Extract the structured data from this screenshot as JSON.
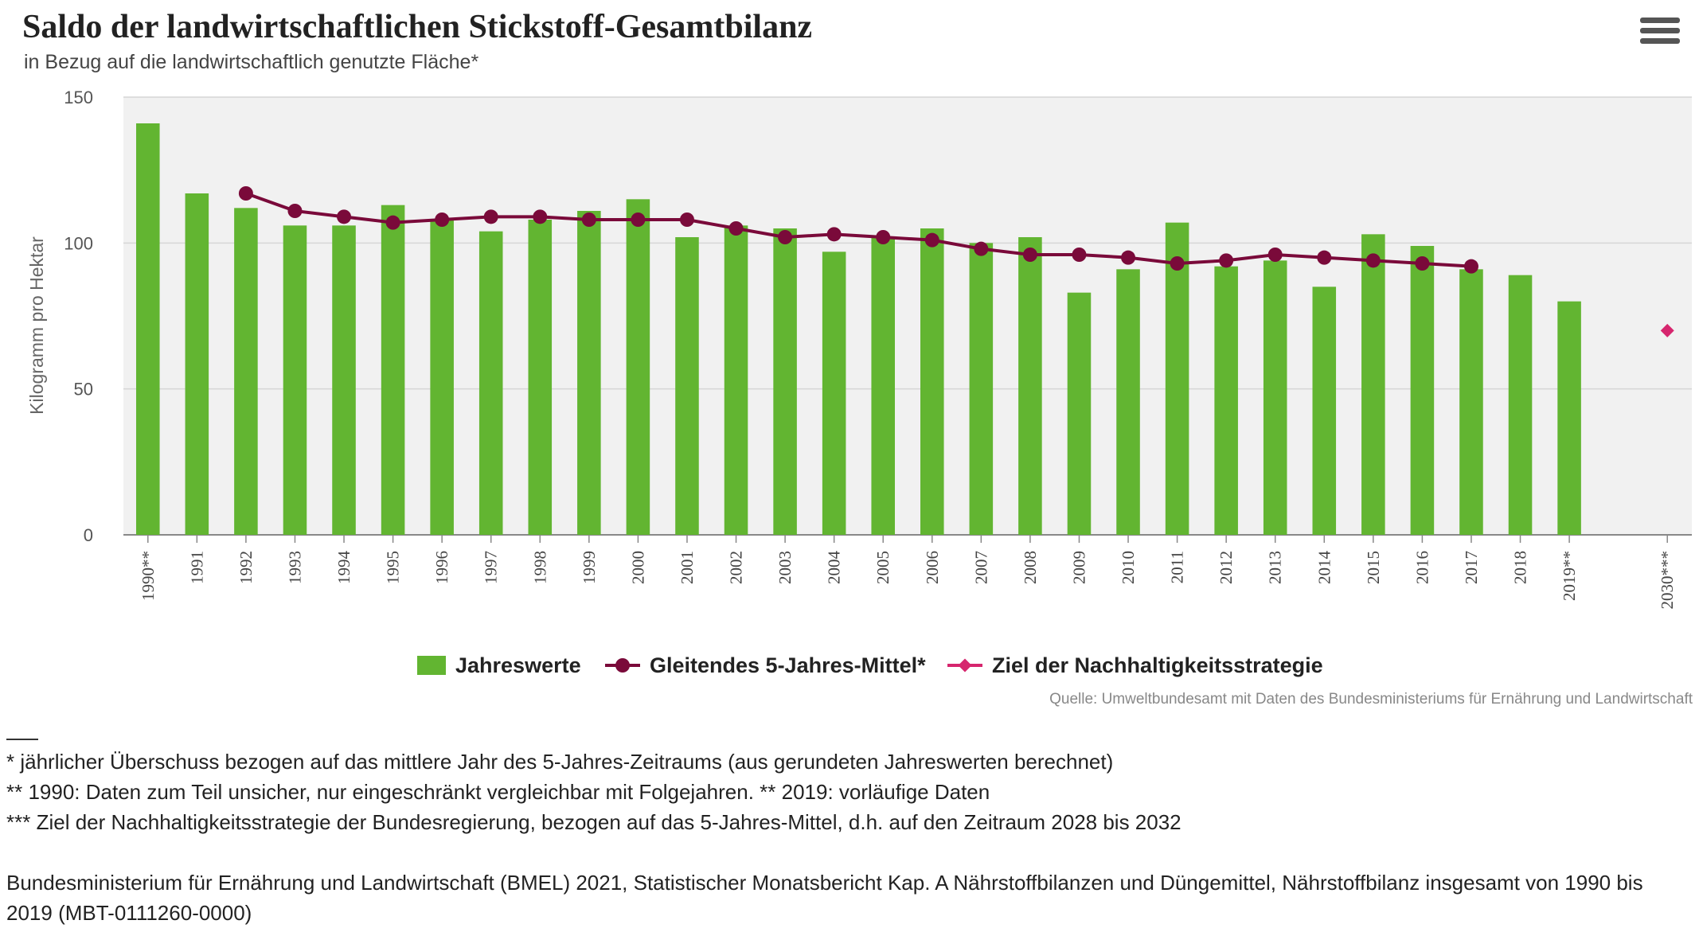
{
  "header": {
    "title": "Saldo der landwirtschaftlichen Stickstoff-Gesamtbilanz",
    "subtitle": "in Bezug auf die landwirtschaftlich genutzte Fläche*",
    "menu_icon": "hamburger-menu-icon"
  },
  "colors": {
    "bar": "#62b531",
    "line": "#7a0a3a",
    "target": "#d6266e",
    "plot_bg": "#f1f1f1",
    "grid": "#d6d6d6"
  },
  "chart_data": {
    "type": "bar",
    "title": "Saldo der landwirtschaftlichen Stickstoff-Gesamtbilanz",
    "ylabel": "Kilogramm pro Hektar",
    "xlabel": "",
    "ylim": [
      0,
      150
    ],
    "yticks": [
      "0",
      "50",
      "100",
      "150"
    ],
    "ytick_values": [
      0,
      50,
      100,
      150
    ],
    "categories": [
      "1990**",
      "1991",
      "1992",
      "1993",
      "1994",
      "1995",
      "1996",
      "1997",
      "1998",
      "1999",
      "2000",
      "2001",
      "2002",
      "2003",
      "2004",
      "2005",
      "2006",
      "2007",
      "2008",
      "2009",
      "2010",
      "2011",
      "2012",
      "2013",
      "2014",
      "2015",
      "2016",
      "2017",
      "2018",
      "2019**",
      "",
      "2030***"
    ],
    "series": [
      {
        "name": "Jahreswerte",
        "type": "bar",
        "values": [
          141,
          117,
          112,
          106,
          106,
          113,
          108,
          104,
          108,
          111,
          115,
          102,
          106,
          105,
          97,
          102,
          105,
          100,
          102,
          83,
          91,
          107,
          92,
          94,
          85,
          103,
          99,
          91,
          89,
          80,
          null,
          null
        ]
      },
      {
        "name": "Gleitendes 5-Jahres-Mittel*",
        "type": "line",
        "values": [
          null,
          null,
          117,
          111,
          109,
          107,
          108,
          109,
          109,
          108,
          108,
          108,
          105,
          102,
          103,
          102,
          101,
          98,
          96,
          96,
          95,
          93,
          94,
          96,
          95,
          94,
          93,
          92,
          null,
          null,
          null,
          null
        ]
      },
      {
        "name": "Ziel der Nachhaltigkeitsstrategie",
        "type": "scatter",
        "values": [
          null,
          null,
          null,
          null,
          null,
          null,
          null,
          null,
          null,
          null,
          null,
          null,
          null,
          null,
          null,
          null,
          null,
          null,
          null,
          null,
          null,
          null,
          null,
          null,
          null,
          null,
          null,
          null,
          null,
          null,
          null,
          70
        ]
      }
    ],
    "legend_position": "bottom-center"
  },
  "legend": {
    "items": [
      "Jahreswerte",
      "Gleitendes 5-Jahres-Mittel*",
      "Ziel der Nachhaltigkeitsstrategie"
    ]
  },
  "source": "Quelle: Umweltbundesamt mit Daten des Bundesministeriums für Ernährung und Landwirtschaft",
  "notes": [
    "* jährlicher Überschuss bezogen auf das mittlere Jahr des 5-Jahres-Zeitraums (aus gerundeten Jahreswerten berechnet)",
    "** 1990: Daten zum Teil unsicher, nur eingeschränkt vergleichbar mit Folgejahren. ** 2019: vorläufige Daten",
    "*** Ziel der Nachhaltigkeitsstrategie der Bundesregierung, bezogen auf das 5-Jahres-Mittel, d.h. auf den Zeitraum 2028 bis 2032"
  ],
  "citation": "Bundesministerium für Ernährung und Landwirtschaft (BMEL) 2021, Statistischer Monatsbericht Kap. A Nährstoffbilanzen und Düngemittel, Nährstoffbilanz insgesamt von 1990 bis 2019 (MBT-0111260-0000)"
}
